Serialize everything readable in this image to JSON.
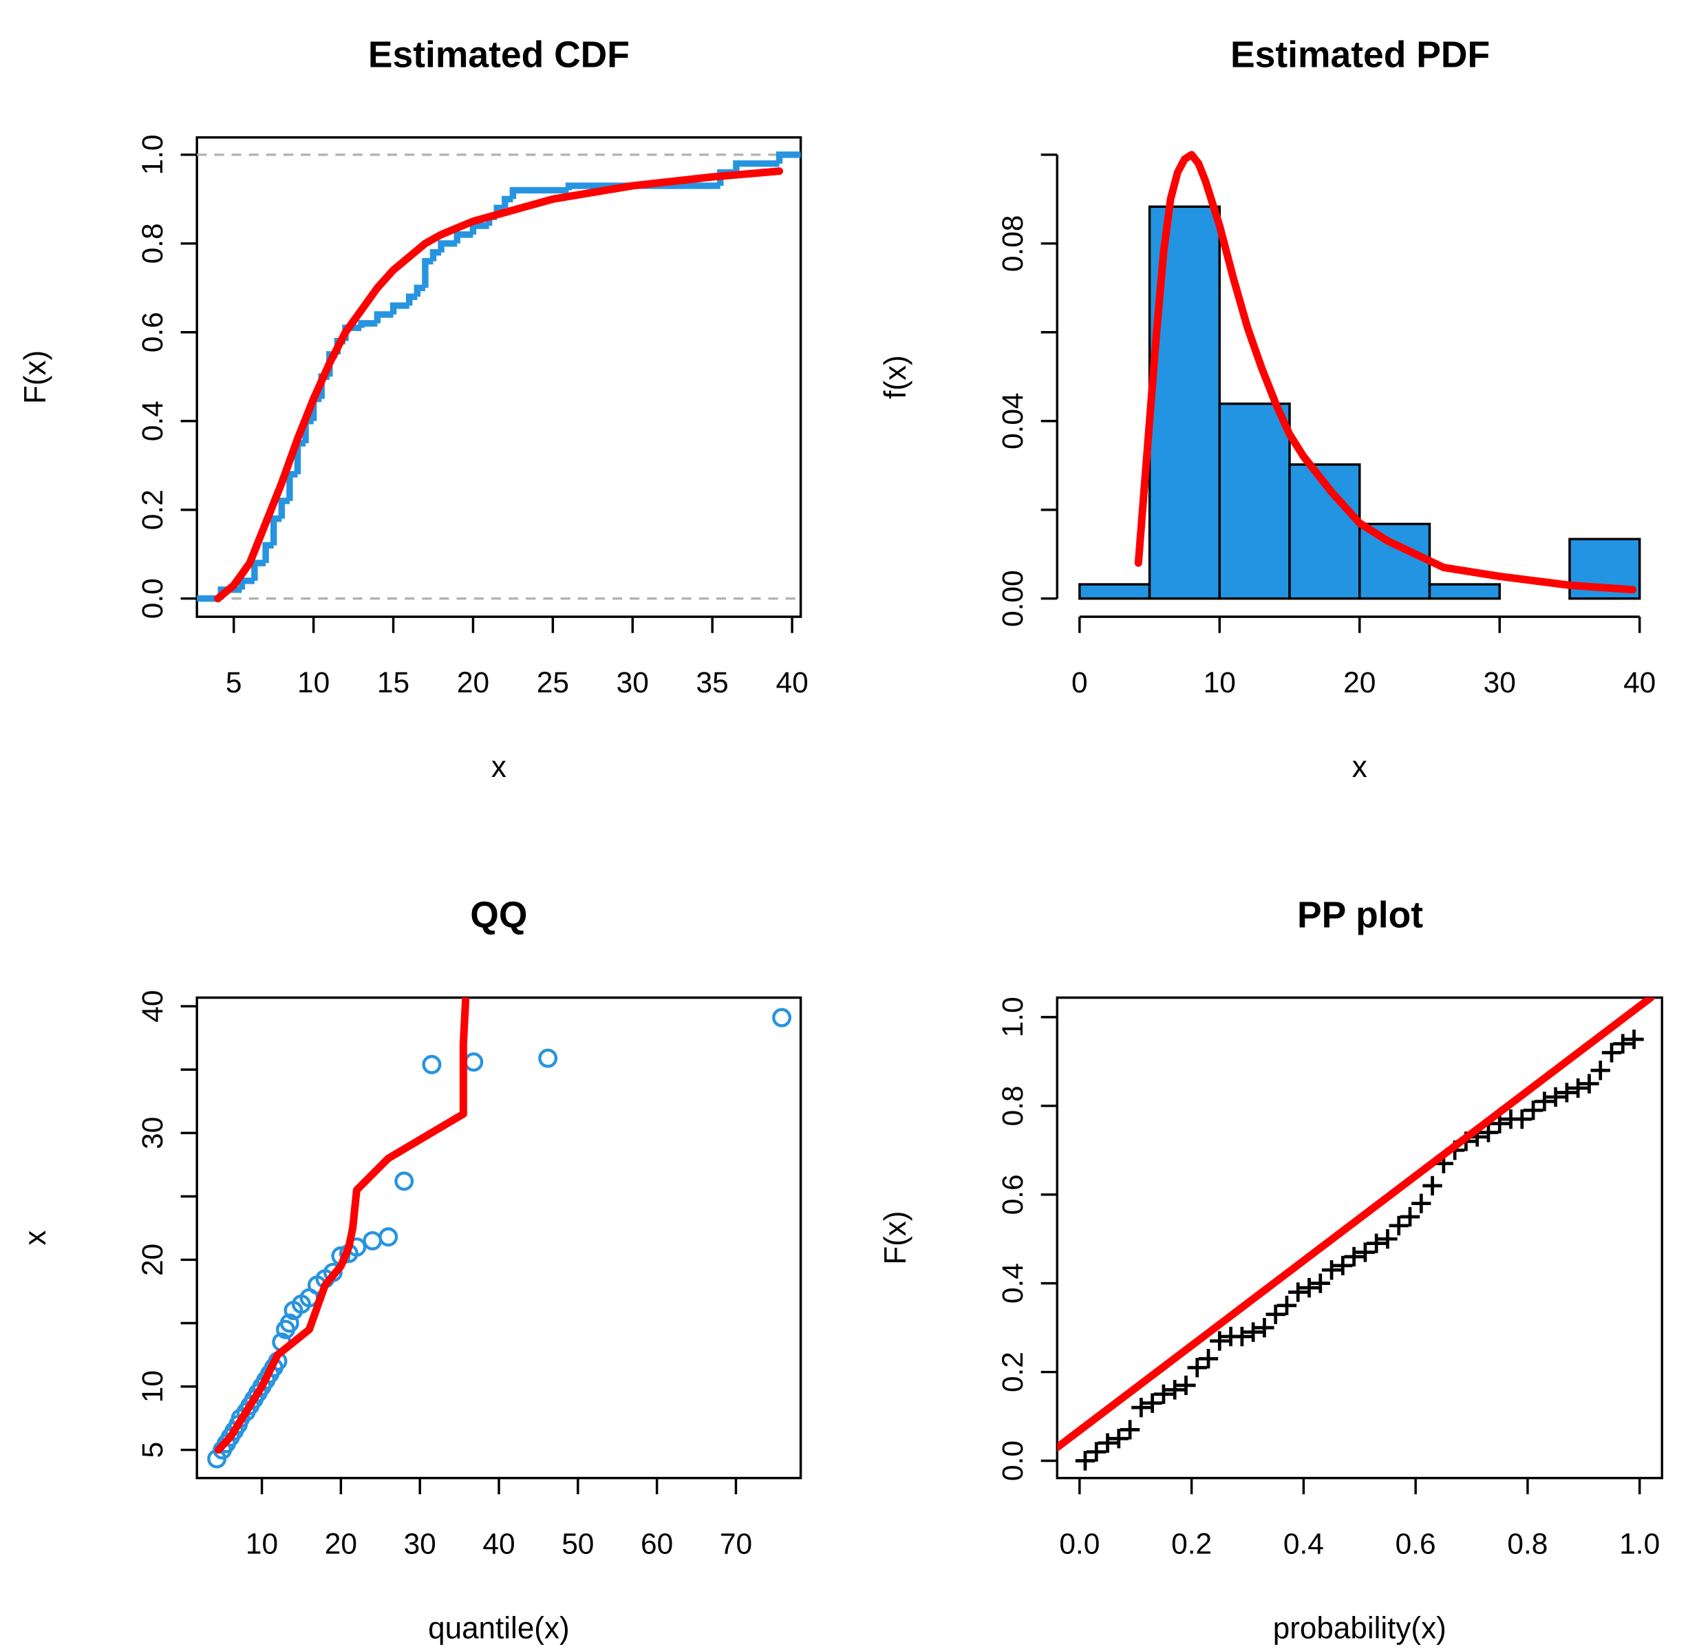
{
  "chart_data": [
    {
      "type": "line",
      "title": "Estimated CDF",
      "x_label": "x",
      "y_label": "F(x)",
      "xlim": [
        2.69,
        40.54
      ],
      "ylim": [
        -0.041,
        1.039
      ],
      "xticks": [
        5,
        10,
        15,
        20,
        25,
        30,
        35,
        40
      ],
      "yticks": [
        {
          "value": 0,
          "label": "0.0"
        },
        {
          "value": 0.2,
          "label": "0.2"
        },
        {
          "value": 0.4,
          "label": "0.4"
        },
        {
          "value": 0.6,
          "label": "0.6"
        },
        {
          "value": 0.8,
          "label": "0.8"
        },
        {
          "value": 1,
          "label": "1.0"
        }
      ],
      "hlines": [
        0,
        1
      ],
      "hline_color": "#b3b3b3",
      "series": [
        {
          "style": "step",
          "color": "#2794e0",
          "x": [
            2.69,
            4,
            4.2,
            5.5,
            6.3,
            7,
            7.5,
            8,
            8.5,
            9,
            9.5,
            10,
            10.5,
            11,
            11.5,
            12,
            13,
            14,
            15,
            16,
            16.5,
            17,
            17.5,
            18,
            19,
            20,
            21,
            21.5,
            22,
            22.5,
            26,
            35.5,
            36.5,
            39.2,
            40.54
          ],
          "values": [
            0,
            0,
            0.02,
            0.04,
            0.08,
            0.12,
            0.18,
            0.22,
            0.28,
            0.35,
            0.4,
            0.45,
            0.5,
            0.55,
            0.58,
            0.61,
            0.62,
            0.64,
            0.66,
            0.68,
            0.7,
            0.76,
            0.78,
            0.8,
            0.82,
            0.84,
            0.86,
            0.88,
            0.9,
            0.92,
            0.93,
            0.96,
            0.98,
            1,
            1
          ]
        },
        {
          "style": "line",
          "color": "#ff0000",
          "x": [
            4,
            5,
            6,
            7,
            8,
            9,
            10,
            11,
            12,
            13,
            14,
            15,
            16,
            17,
            18,
            19,
            20,
            22,
            25,
            30,
            35,
            39.2
          ],
          "values": [
            0,
            0.03,
            0.08,
            0.17,
            0.26,
            0.36,
            0.45,
            0.53,
            0.6,
            0.65,
            0.7,
            0.74,
            0.77,
            0.8,
            0.82,
            0.835,
            0.85,
            0.87,
            0.9,
            0.93,
            0.95,
            0.963
          ]
        }
      ]
    },
    {
      "type": "histogram",
      "title": "Estimated PDF",
      "x_label": "x",
      "y_label": "f(x)",
      "xlim": [
        -1.6,
        41.6
      ],
      "ylim": [
        -0.0041,
        0.1039
      ],
      "xticks": [
        0,
        10,
        20,
        30,
        40
      ],
      "yticks": [
        {
          "value": 0,
          "label": "0.00"
        },
        {
          "value": 0.04,
          "label": "0.04"
        },
        {
          "value": 0.08,
          "label": "0.08"
        }
      ],
      "yminor_ticks": [
        0.02,
        0.06,
        0.1
      ],
      "bins": [
        0,
        5,
        10,
        15,
        20,
        25,
        30,
        35,
        40
      ],
      "values": [
        0.0032,
        0.0883,
        0.0439,
        0.0302,
        0.0168,
        0.0032,
        0,
        0.0134
      ],
      "color": "#2394e2",
      "series": [
        {
          "style": "line",
          "color": "#ff0000",
          "x": [
            4.2,
            5,
            5.5,
            6,
            6.5,
            7,
            7.5,
            8,
            8.5,
            9,
            10,
            11,
            12,
            13,
            14,
            15,
            16,
            18,
            20,
            22,
            24,
            26,
            30,
            35,
            39.5
          ],
          "values": [
            0.008,
            0.04,
            0.06,
            0.078,
            0.09,
            0.096,
            0.099,
            0.1,
            0.098,
            0.094,
            0.084,
            0.072,
            0.061,
            0.052,
            0.044,
            0.037,
            0.032,
            0.024,
            0.017,
            0.013,
            0.01,
            0.007,
            0.005,
            0.003,
            0.002
          ]
        }
      ]
    },
    {
      "type": "scatter",
      "title": "QQ",
      "x_label": "quantile(x)",
      "y_label": "x",
      "xlim": [
        1.78,
        78.2
      ],
      "ylim": [
        2.78,
        40.68
      ],
      "xticks": [
        10,
        20,
        30,
        40,
        50,
        60,
        70
      ],
      "yticks": [
        5,
        10,
        20,
        30,
        40
      ],
      "yminor_ticks": [
        15,
        25,
        35
      ],
      "series": [
        {
          "style": "circle",
          "color": "#2794e0",
          "x": [
            4.3,
            5,
            5.5,
            6,
            6.5,
            7,
            7.3,
            8,
            8.5,
            9,
            9.5,
            10,
            10.5,
            11,
            11.5,
            12,
            12.5,
            13,
            13.5,
            14,
            15,
            16,
            17,
            18,
            19,
            20,
            21,
            22,
            24,
            26,
            28,
            31.5,
            36.8,
            46.2,
            75.8
          ],
          "values": [
            4.3,
            5,
            5.5,
            6,
            6.5,
            7,
            7.5,
            8,
            8.5,
            9,
            9.5,
            10,
            10.5,
            11,
            11.5,
            12,
            13.5,
            14.5,
            15,
            16,
            16.5,
            17,
            18,
            18.5,
            19,
            20.3,
            20.5,
            21,
            21.5,
            21.8,
            26.2,
            35.4,
            35.6,
            35.9,
            39.1
          ]
        },
        {
          "style": "line",
          "color": "#ff0000",
          "x": [
            4.5,
            6,
            8,
            10,
            12,
            14,
            16,
            18,
            20,
            21,
            21.5,
            22,
            26,
            35.5,
            35.5,
            35.8
          ],
          "values": [
            5,
            6,
            8,
            10,
            12.5,
            13.5,
            14.5,
            18,
            19.5,
            21,
            22.5,
            25.5,
            28,
            31.5,
            37,
            40.68
          ]
        }
      ]
    },
    {
      "type": "scatter",
      "title": "PP plot",
      "x_label": "probability(x)",
      "y_label": "F(x)",
      "xlim": [
        -0.04,
        1.04
      ],
      "ylim": [
        -0.039,
        1.044
      ],
      "xticks": [
        {
          "value": 0,
          "label": "0.0"
        },
        {
          "value": 0.2,
          "label": "0.2"
        },
        {
          "value": 0.4,
          "label": "0.4"
        },
        {
          "value": 0.6,
          "label": "0.6"
        },
        {
          "value": 0.8,
          "label": "0.8"
        },
        {
          "value": 1,
          "label": "1.0"
        }
      ],
      "yticks": [
        {
          "value": 0,
          "label": "0.0"
        },
        {
          "value": 0.2,
          "label": "0.2"
        },
        {
          "value": 0.4,
          "label": "0.4"
        },
        {
          "value": 0.6,
          "label": "0.6"
        },
        {
          "value": 0.8,
          "label": "0.8"
        },
        {
          "value": 1,
          "label": "1.0"
        }
      ],
      "series": [
        {
          "style": "cross",
          "color": "#000000",
          "x": [
            0.01,
            0.03,
            0.05,
            0.07,
            0.09,
            0.11,
            0.13,
            0.15,
            0.17,
            0.19,
            0.21,
            0.23,
            0.25,
            0.27,
            0.29,
            0.31,
            0.33,
            0.35,
            0.37,
            0.39,
            0.41,
            0.43,
            0.45,
            0.47,
            0.49,
            0.51,
            0.53,
            0.55,
            0.57,
            0.59,
            0.61,
            0.63,
            0.65,
            0.67,
            0.69,
            0.71,
            0.73,
            0.75,
            0.77,
            0.79,
            0.81,
            0.83,
            0.85,
            0.87,
            0.89,
            0.91,
            0.93,
            0.95,
            0.97,
            0.99
          ],
          "values": [
            0,
            0.02,
            0.04,
            0.05,
            0.07,
            0.12,
            0.13,
            0.15,
            0.16,
            0.17,
            0.21,
            0.23,
            0.27,
            0.28,
            0.28,
            0.29,
            0.3,
            0.33,
            0.35,
            0.38,
            0.39,
            0.4,
            0.43,
            0.44,
            0.46,
            0.47,
            0.49,
            0.5,
            0.53,
            0.55,
            0.58,
            0.62,
            0.67,
            0.7,
            0.72,
            0.73,
            0.74,
            0.76,
            0.77,
            0.77,
            0.79,
            0.81,
            0.82,
            0.83,
            0.84,
            0.85,
            0.88,
            0.92,
            0.94,
            0.95
          ]
        },
        {
          "style": "line",
          "color": "#ff0000",
          "x": [
            -0.04,
            1.02
          ],
          "values": [
            0.03,
            1.044
          ]
        }
      ]
    }
  ]
}
